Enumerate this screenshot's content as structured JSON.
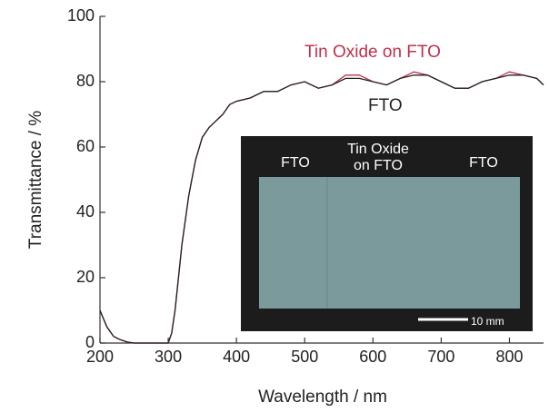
{
  "chart_data": {
    "type": "line",
    "x_label": "Wavelength / nm",
    "y_label": "Transmittance / %",
    "x": [
      200,
      210,
      220,
      230,
      240,
      250,
      260,
      280,
      300,
      305,
      310,
      315,
      320,
      330,
      340,
      350,
      360,
      370,
      380,
      390,
      400,
      420,
      440,
      460,
      480,
      500,
      520,
      540,
      560,
      580,
      600,
      620,
      640,
      660,
      680,
      700,
      720,
      740,
      760,
      780,
      800,
      820,
      840,
      850
    ],
    "series": [
      {
        "name": "Tin Oxide on FTO",
        "color": "#c0304a",
        "values": [
          10,
          5,
          2,
          1,
          0.3,
          0,
          0,
          0,
          0,
          3,
          10,
          20,
          30,
          45,
          56,
          63,
          66,
          68,
          70,
          73,
          74,
          75,
          77,
          77,
          79,
          80,
          78,
          79,
          82,
          82,
          80,
          79,
          81,
          83,
          82,
          80,
          78,
          78,
          80,
          81,
          83,
          82,
          81,
          79
        ]
      },
      {
        "name": "FTO",
        "color": "#222222",
        "values": [
          10,
          5,
          2,
          1,
          0.3,
          0,
          0,
          0,
          0,
          3,
          10,
          20,
          30,
          45,
          56,
          63,
          66,
          68,
          70,
          73,
          74,
          75,
          77,
          77,
          79,
          80,
          78,
          79,
          81,
          81,
          80,
          79,
          81,
          82,
          82,
          80,
          78,
          78,
          80,
          81,
          82,
          82,
          81,
          79
        ]
      }
    ],
    "xlim": [
      200,
      850
    ],
    "ylim": [
      0,
      100
    ],
    "xticks": [
      200,
      300,
      400,
      500,
      600,
      700,
      800
    ],
    "yticks": [
      0,
      20,
      40,
      60,
      80,
      100
    ],
    "inset": {
      "left_label": "FTO",
      "middle_label": [
        "Tin Oxide",
        "on FTO"
      ],
      "right_label": "FTO",
      "scale_bar": "10 mm"
    }
  }
}
